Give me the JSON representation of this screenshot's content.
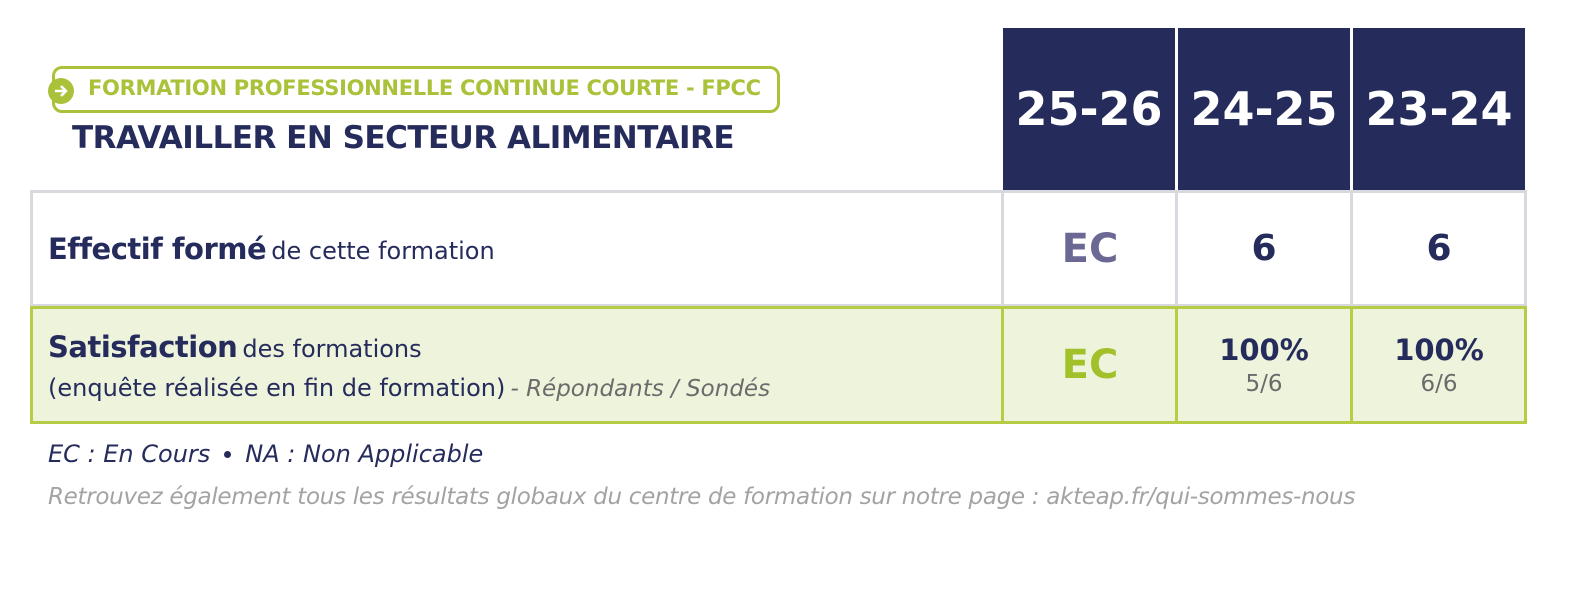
{
  "header": {
    "tag": "FORMATION PROFESSIONNELLE CONTINUE COURTE - FPCC",
    "title": "TRAVAILLER EN SECTEUR ALIMENTAIRE"
  },
  "table": {
    "columns": [
      "25-26",
      "24-25",
      "23-24"
    ],
    "rows": [
      {
        "label_bold": "Effectif formé",
        "label_rest": "de cette formation",
        "cells": [
          {
            "value": "EC"
          },
          {
            "value": "6"
          },
          {
            "value": "6"
          }
        ]
      },
      {
        "label_bold": "Satisfaction",
        "label_rest": "des formations",
        "sublabel": "(enquête réalisée en fin de formation)",
        "sublabel_note": "- Répondants / Sondés",
        "cells": [
          {
            "value": "EC"
          },
          {
            "value": "100%",
            "detail": "5/6"
          },
          {
            "value": "100%",
            "detail": "6/6"
          }
        ]
      }
    ]
  },
  "legend": [
    "EC : En Cours",
    "NA : Non Applicable"
  ],
  "footer": "Retrouvez également tous les résultats globaux du centre de formation sur notre page : akteap.fr/qui-sommes-nous"
}
